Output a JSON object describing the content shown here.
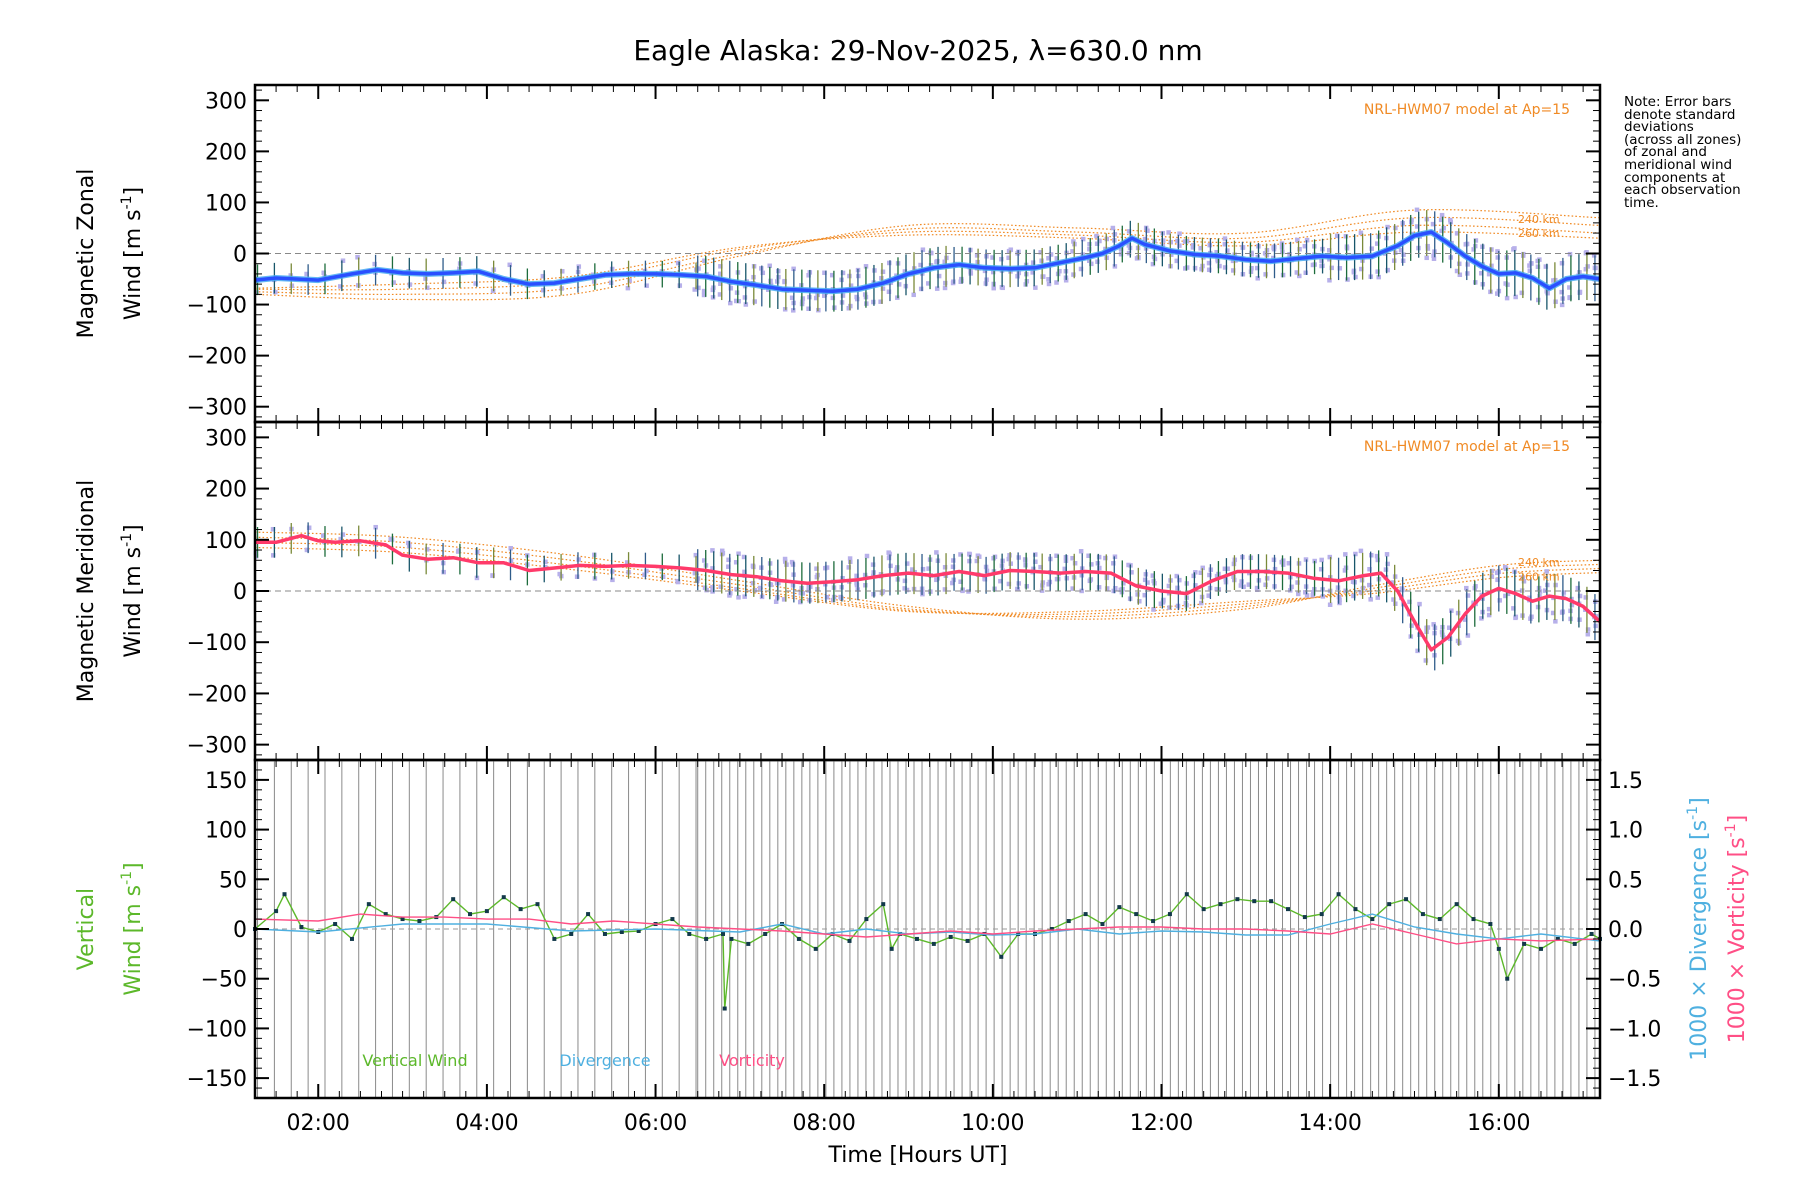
{
  "title": "Eagle Alaska: 29-Nov-2025, λ=630.0 nm",
  "note_lines": [
    "Note: Error bars",
    "denote standard",
    "deviations",
    "(across all zones)",
    "of zonal and",
    "meridional wind",
    "components at",
    "each observation",
    "time."
  ],
  "colors": {
    "zonal": "#2a4fff",
    "zonal_light": "#47aaf2",
    "meridional": "#ff3a6a",
    "model": "#f08a24",
    "vertical": "#5cb82a",
    "divergence": "#4fb0e0",
    "vorticity": "#ff4f86",
    "scatter": "#b7b0ea",
    "markers": "#12394a"
  },
  "chart_data": {
    "type": "line",
    "x_unit": "hours UT",
    "xlim": [
      1.25,
      17.2
    ],
    "xlabel": "Time [Hours UT]",
    "x_ticks": [
      {
        "v": 2,
        "label": "02:00"
      },
      {
        "v": 4,
        "label": "04:00"
      },
      {
        "v": 6,
        "label": "06:00"
      },
      {
        "v": 8,
        "label": "08:00"
      },
      {
        "v": 10,
        "label": "10:00"
      },
      {
        "v": 12,
        "label": "12:00"
      },
      {
        "v": 14,
        "label": "14:00"
      },
      {
        "v": 16,
        "label": "16:00"
      }
    ],
    "panels": [
      {
        "id": "zonal",
        "ylabel_line1": "Magnetic Zonal",
        "ylabel_line2_main": "Wind [m s",
        "ylabel_line2_sup": "-1",
        "ylabel_line2_end": "]",
        "ylim": [
          -330,
          330
        ],
        "yticks": [
          -300,
          -200,
          -100,
          0,
          100,
          200,
          300
        ],
        "tick_labels": [
          "−300",
          "−200",
          "−100",
          "0",
          "100",
          "200",
          "300"
        ],
        "model_label": "NRL-HWM07 model at Ap=15",
        "alt_labels": [
          "240 km",
          "260 km"
        ],
        "alt_label_values": [
          68,
          40
        ],
        "series": {
          "name": "Magnetic zonal wind",
          "x": [
            1.25,
            1.5,
            2.0,
            2.4,
            2.7,
            3.0,
            3.3,
            3.6,
            3.9,
            4.2,
            4.5,
            4.8,
            5.1,
            5.4,
            5.7,
            6.0,
            6.3,
            6.6,
            6.9,
            7.2,
            7.5,
            7.8,
            8.1,
            8.4,
            8.7,
            9.0,
            9.3,
            9.6,
            9.9,
            10.2,
            10.5,
            10.8,
            11.1,
            11.3,
            11.5,
            11.65,
            11.8,
            12.1,
            12.4,
            12.7,
            13.0,
            13.3,
            13.6,
            13.9,
            14.2,
            14.5,
            14.8,
            15.0,
            15.2,
            15.4,
            15.6,
            15.8,
            16.0,
            16.2,
            16.4,
            16.6,
            16.8,
            17.0,
            17.2
          ],
          "values": [
            -52,
            -48,
            -52,
            -40,
            -32,
            -38,
            -40,
            -38,
            -35,
            -50,
            -60,
            -58,
            -50,
            -42,
            -40,
            -40,
            -42,
            -45,
            -55,
            -62,
            -70,
            -72,
            -74,
            -70,
            -58,
            -40,
            -28,
            -22,
            -28,
            -30,
            -28,
            -18,
            -8,
            0,
            15,
            30,
            18,
            5,
            -2,
            -5,
            -12,
            -15,
            -10,
            -5,
            -8,
            -5,
            15,
            35,
            42,
            20,
            -5,
            -25,
            -40,
            -38,
            -48,
            -68,
            -50,
            -45,
            -50
          ]
        },
        "model_curves": [
          [
            [
              1.25,
              -80
            ],
            [
              3,
              -90
            ],
            [
              5,
              -80
            ],
            [
              7,
              -5
            ],
            [
              9,
              55
            ],
            [
              11,
              50
            ],
            [
              13,
              40
            ],
            [
              15,
              85
            ],
            [
              17.2,
              70
            ]
          ],
          [
            [
              1.25,
              -75
            ],
            [
              3,
              -80
            ],
            [
              5,
              -68
            ],
            [
              7,
              0
            ],
            [
              9,
              48
            ],
            [
              11,
              42
            ],
            [
              13,
              30
            ],
            [
              15,
              70
            ],
            [
              17.2,
              55
            ]
          ],
          [
            [
              1.25,
              -70
            ],
            [
              3,
              -70
            ],
            [
              5,
              -55
            ],
            [
              7,
              8
            ],
            [
              9,
              42
            ],
            [
              11,
              36
            ],
            [
              13,
              22
            ],
            [
              15,
              55
            ],
            [
              17.2,
              40
            ]
          ],
          [
            [
              1.25,
              -68
            ],
            [
              3,
              -60
            ],
            [
              5,
              -45
            ],
            [
              7,
              12
            ],
            [
              9,
              36
            ],
            [
              11,
              30
            ],
            [
              13,
              15
            ],
            [
              15,
              42
            ],
            [
              17.2,
              30
            ]
          ]
        ]
      },
      {
        "id": "meridional",
        "ylabel_line1": "Magnetic Meridional",
        "ylabel_line2_main": "Wind [m s",
        "ylabel_line2_sup": "-1",
        "ylabel_line2_end": "]",
        "ylim": [
          -330,
          330
        ],
        "yticks": [
          -300,
          -200,
          -100,
          0,
          100,
          200,
          300
        ],
        "tick_labels": [
          "−300",
          "−200",
          "−100",
          "0",
          "100",
          "200",
          "300"
        ],
        "model_label": "NRL-HWM07 model at Ap=15",
        "alt_labels": [
          "240 km",
          "260 km"
        ],
        "alt_label_values": [
          57,
          28
        ],
        "series": {
          "name": "Magnetic meridional wind",
          "x": [
            1.25,
            1.5,
            1.8,
            2.0,
            2.2,
            2.5,
            2.8,
            3.0,
            3.3,
            3.6,
            3.9,
            4.2,
            4.5,
            4.8,
            5.1,
            5.4,
            5.7,
            6.0,
            6.3,
            6.6,
            6.9,
            7.2,
            7.5,
            7.8,
            8.1,
            8.4,
            8.7,
            9.0,
            9.3,
            9.6,
            9.9,
            10.2,
            10.5,
            10.8,
            11.1,
            11.4,
            11.7,
            12.0,
            12.3,
            12.6,
            12.9,
            13.2,
            13.5,
            13.8,
            14.1,
            14.4,
            14.6,
            14.8,
            15.0,
            15.2,
            15.4,
            15.6,
            15.8,
            16.0,
            16.2,
            16.4,
            16.6,
            16.8,
            17.0,
            17.2
          ],
          "values": [
            95,
            95,
            108,
            98,
            95,
            98,
            90,
            70,
            62,
            65,
            55,
            55,
            40,
            45,
            50,
            48,
            50,
            48,
            45,
            40,
            32,
            28,
            20,
            15,
            18,
            22,
            30,
            35,
            30,
            38,
            30,
            40,
            38,
            35,
            38,
            35,
            10,
            0,
            -5,
            20,
            38,
            38,
            35,
            25,
            20,
            30,
            35,
            0,
            -60,
            -115,
            -90,
            -45,
            -10,
            5,
            -5,
            -20,
            -10,
            -15,
            -30,
            -60
          ]
        },
        "model_curves": [
          [
            [
              1.25,
              115
            ],
            [
              3,
              105
            ],
            [
              5,
              70
            ],
            [
              7,
              20
            ],
            [
              9,
              -30
            ],
            [
              11,
              -55
            ],
            [
              13,
              -35
            ],
            [
              14.5,
              10
            ],
            [
              16,
              50
            ],
            [
              17.2,
              60
            ]
          ],
          [
            [
              1.25,
              105
            ],
            [
              3,
              95
            ],
            [
              5,
              60
            ],
            [
              7,
              12
            ],
            [
              9,
              -35
            ],
            [
              11,
              -50
            ],
            [
              13,
              -30
            ],
            [
              14.5,
              5
            ],
            [
              16,
              42
            ],
            [
              17.2,
              52
            ]
          ],
          [
            [
              1.25,
              95
            ],
            [
              3,
              85
            ],
            [
              5,
              50
            ],
            [
              7,
              5
            ],
            [
              9,
              -38
            ],
            [
              11,
              -45
            ],
            [
              13,
              -25
            ],
            [
              14.5,
              0
            ],
            [
              16,
              34
            ],
            [
              17.2,
              44
            ]
          ],
          [
            [
              1.25,
              85
            ],
            [
              3,
              75
            ],
            [
              5,
              42
            ],
            [
              7,
              0
            ],
            [
              9,
              -40
            ],
            [
              11,
              -40
            ],
            [
              13,
              -20
            ],
            [
              14.5,
              -5
            ],
            [
              16,
              26
            ],
            [
              17.2,
              36
            ]
          ]
        ]
      },
      {
        "id": "vertical",
        "ylabel_line1": "Vertical",
        "ylabel_line2_main": "Wind [m s",
        "ylabel_line2_sup": "-1",
        "ylabel_line2_end": "]",
        "ylim": [
          -170,
          170
        ],
        "yticks": [
          -150,
          -100,
          -50,
          0,
          50,
          100,
          150
        ],
        "tick_labels": [
          "−150",
          "−100",
          "−50",
          "0",
          "50",
          "100",
          "150"
        ],
        "y2lim": [
          -1.7,
          1.7
        ],
        "y2ticks": [
          -1.5,
          -1.0,
          -0.5,
          0.0,
          0.5,
          1.0,
          1.5
        ],
        "y2_tick_labels": [
          "−1.5",
          "−1.0",
          "−0.5",
          "0.0",
          "0.5",
          "1.0",
          "1.5"
        ],
        "y2label_div_main": "1000 × Divergence [s",
        "y2label_vort_main": "1000 × Vorticity [s",
        "y2label_sup": "-1",
        "y2label_end": "]",
        "legend": [
          "Vertical Wind",
          "Divergence",
          "Vorticity"
        ],
        "series": [
          {
            "name": "Vertical Wind",
            "axis": "left",
            "x": [
              1.25,
              1.5,
              1.6,
              1.8,
              2.0,
              2.2,
              2.4,
              2.6,
              2.8,
              3.0,
              3.2,
              3.4,
              3.6,
              3.8,
              4.0,
              4.2,
              4.4,
              4.6,
              4.8,
              5.0,
              5.2,
              5.4,
              5.6,
              5.8,
              6.0,
              6.2,
              6.4,
              6.6,
              6.8,
              6.82,
              6.9,
              7.1,
              7.3,
              7.5,
              7.7,
              7.9,
              8.1,
              8.3,
              8.5,
              8.7,
              8.8,
              8.9,
              9.1,
              9.3,
              9.5,
              9.7,
              9.9,
              10.1,
              10.3,
              10.5,
              10.7,
              10.9,
              11.1,
              11.3,
              11.5,
              11.7,
              11.9,
              12.1,
              12.3,
              12.5,
              12.7,
              12.9,
              13.1,
              13.3,
              13.5,
              13.7,
              13.9,
              14.1,
              14.3,
              14.5,
              14.7,
              14.9,
              15.1,
              15.3,
              15.5,
              15.7,
              15.9,
              16.0,
              16.1,
              16.3,
              16.5,
              16.7,
              16.9,
              17.1,
              17.2
            ],
            "values": [
              0,
              18,
              35,
              2,
              -3,
              5,
              -10,
              25,
              15,
              10,
              8,
              12,
              30,
              15,
              18,
              32,
              20,
              25,
              -10,
              -5,
              15,
              -5,
              -3,
              -2,
              5,
              10,
              -5,
              -10,
              -5,
              -80,
              -10,
              -15,
              -5,
              5,
              -10,
              -20,
              -5,
              -12,
              10,
              25,
              -20,
              -5,
              -10,
              -15,
              -8,
              -12,
              -5,
              -28,
              -5,
              -5,
              0,
              8,
              15,
              5,
              22,
              15,
              8,
              15,
              35,
              20,
              25,
              30,
              28,
              28,
              20,
              12,
              15,
              35,
              20,
              10,
              25,
              30,
              15,
              10,
              25,
              10,
              5,
              -20,
              -50,
              -15,
              -20,
              -10,
              -15,
              -5,
              -10
            ]
          },
          {
            "name": "Divergence",
            "axis": "right",
            "x": [
              1.25,
              2.0,
              3.0,
              4.0,
              5.0,
              6.0,
              7.0,
              7.5,
              8.0,
              8.5,
              9.0,
              9.5,
              10.0,
              10.5,
              11.0,
              11.5,
              12.0,
              12.5,
              13.0,
              13.5,
              14.0,
              14.5,
              15.0,
              15.5,
              16.0,
              16.5,
              17.2
            ],
            "values": [
              0.0,
              -0.03,
              0.05,
              0.05,
              -0.02,
              0.0,
              -0.03,
              0.05,
              -0.05,
              0.0,
              -0.05,
              -0.03,
              -0.06,
              -0.05,
              0.0,
              -0.05,
              -0.02,
              -0.03,
              -0.06,
              -0.06,
              0.05,
              0.15,
              0.02,
              -0.05,
              -0.1,
              -0.05,
              -0.12
            ]
          },
          {
            "name": "Vorticity",
            "axis": "right",
            "x": [
              1.25,
              2.0,
              2.5,
              3.0,
              3.5,
              4.0,
              4.5,
              5.0,
              5.5,
              6.0,
              6.5,
              7.0,
              7.5,
              8.0,
              8.5,
              9.0,
              9.5,
              10.0,
              10.5,
              11.0,
              11.5,
              12.0,
              12.5,
              13.0,
              13.5,
              14.0,
              14.5,
              15.0,
              15.5,
              16.0,
              16.5,
              17.2
            ],
            "values": [
              0.1,
              0.08,
              0.15,
              0.12,
              0.12,
              0.1,
              0.1,
              0.05,
              0.08,
              0.05,
              0.02,
              0.0,
              -0.02,
              -0.05,
              -0.08,
              -0.05,
              -0.02,
              -0.05,
              -0.02,
              0.0,
              0.02,
              0.02,
              0.0,
              0.0,
              -0.02,
              -0.05,
              0.05,
              -0.05,
              -0.15,
              -0.1,
              -0.12,
              -0.1
            ]
          }
        ]
      }
    ]
  }
}
